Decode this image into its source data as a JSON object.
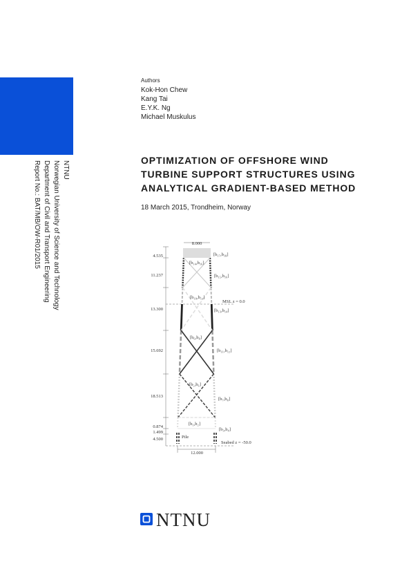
{
  "authors": {
    "heading": "Authors",
    "names": [
      "Kok-Hon Chew",
      "Kang Tai",
      "E.Y.K. Ng",
      "Michael Muskulus"
    ]
  },
  "institution": [
    "NTNU",
    "Norwegian University of Science and Technology",
    "Department of Civil and Transport Engineering",
    "Report No.: BAT/MB/OW-R01/2015"
  ],
  "title": [
    "OPTIMIZATION OF OFFSHORE WIND",
    "TURBINE SUPPORT STRUCTURES USING",
    "ANALYTICAL GRADIENT-BASED METHOD"
  ],
  "date": "18 March 2015, Trondheim, Norway",
  "figure": {
    "top_width": "8.000",
    "bottom_width": "12.000",
    "heights": [
      "4.535",
      "11.237",
      "13.300",
      "15.692",
      "18.513",
      "0.874",
      "1.499",
      "4.500"
    ],
    "leg_labels": [
      "[b₁₇,b₁₈]",
      "[b₁₅,b₁₆]",
      "[b₁₃,b₁₄]",
      "[b₁₁,b₁₂]",
      "[b₇,b₈]",
      "[b₃,b₄]"
    ],
    "brace_labels": [
      "[b₁₄,b₁₆]",
      "[b₁₀,b₁₂]",
      "[b₆,b₈]",
      "[b₅,b₆]",
      "[b₁,b₂]"
    ],
    "msl": "MSL  z = 0.0",
    "seabed": "Seabed z = -50.0",
    "pile": "Pile"
  },
  "logo": "NTNU"
}
